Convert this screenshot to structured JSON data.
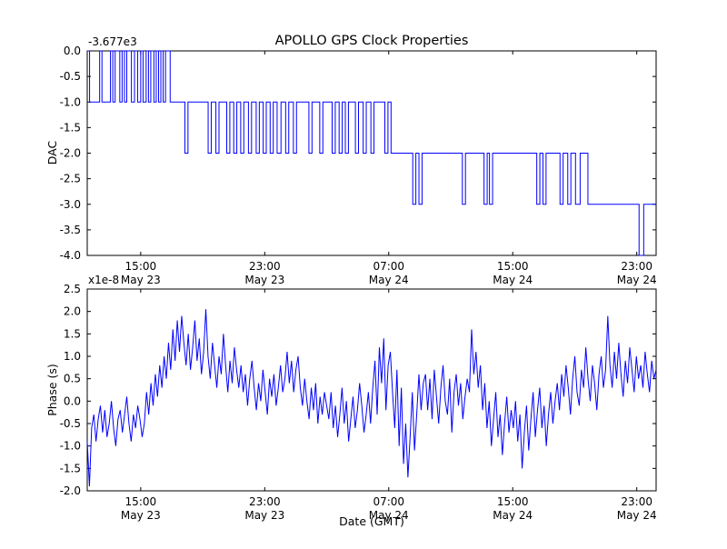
{
  "title": "APOLLO GPS Clock Properties",
  "colors": {
    "line": "#0000ff",
    "axis": "#000000",
    "background": "#ffffff"
  },
  "chart_data": [
    {
      "type": "line",
      "name": "dac",
      "title": "APOLLO GPS Clock Properties",
      "ylabel": "DAC",
      "xlabel": "",
      "offset_label": "-3.677e3",
      "ylim": [
        -4.0,
        0.0
      ],
      "xlim_hours": [
        0,
        36.7
      ],
      "grid": false,
      "legend": "none",
      "step": true,
      "yticks": [
        {
          "v": 0.0,
          "label": "0.0"
        },
        {
          "v": -0.5,
          "label": "-0.5"
        },
        {
          "v": -1.0,
          "label": "-1.0"
        },
        {
          "v": -1.5,
          "label": "-1.5"
        },
        {
          "v": -2.0,
          "label": "-2.0"
        },
        {
          "v": -2.5,
          "label": "-2.5"
        },
        {
          "v": -3.0,
          "label": "-3.0"
        },
        {
          "v": -3.5,
          "label": "-3.5"
        },
        {
          "v": -4.0,
          "label": "-4.0"
        }
      ],
      "xticks": [
        {
          "t": 3.45,
          "time": "15:00",
          "date": "May 23"
        },
        {
          "t": 11.45,
          "time": "23:00",
          "date": "May 23"
        },
        {
          "t": 19.45,
          "time": "07:00",
          "date": "May 24"
        },
        {
          "t": 27.45,
          "time": "15:00",
          "date": "May 24"
        },
        {
          "t": 35.45,
          "time": "23:00",
          "date": "May 24"
        }
      ],
      "points": [
        [
          0.0,
          0
        ],
        [
          0.15,
          -1
        ],
        [
          0.8,
          0
        ],
        [
          0.95,
          -1
        ],
        [
          1.5,
          0
        ],
        [
          1.65,
          -1
        ],
        [
          1.8,
          0
        ],
        [
          2.1,
          -1
        ],
        [
          2.25,
          0
        ],
        [
          2.4,
          -1
        ],
        [
          2.55,
          0
        ],
        [
          2.85,
          -1
        ],
        [
          3.05,
          0
        ],
        [
          3.25,
          -1
        ],
        [
          3.45,
          0
        ],
        [
          3.6,
          -1
        ],
        [
          3.8,
          0
        ],
        [
          3.95,
          -1
        ],
        [
          4.1,
          0
        ],
        [
          4.3,
          -1
        ],
        [
          4.45,
          0
        ],
        [
          4.6,
          -1
        ],
        [
          4.75,
          0
        ],
        [
          4.9,
          -1
        ],
        [
          5.05,
          0
        ],
        [
          5.35,
          -1
        ],
        [
          6.3,
          -2
        ],
        [
          6.5,
          -1
        ],
        [
          7.8,
          -2
        ],
        [
          8.0,
          -1
        ],
        [
          8.3,
          -2
        ],
        [
          8.5,
          -1
        ],
        [
          9.0,
          -2
        ],
        [
          9.2,
          -1
        ],
        [
          9.45,
          -2
        ],
        [
          9.65,
          -1
        ],
        [
          9.9,
          -2
        ],
        [
          10.1,
          -1
        ],
        [
          10.4,
          -2
        ],
        [
          10.6,
          -1
        ],
        [
          10.9,
          -2
        ],
        [
          11.1,
          -1
        ],
        [
          11.35,
          -2
        ],
        [
          11.55,
          -1
        ],
        [
          11.8,
          -2
        ],
        [
          12.0,
          -1
        ],
        [
          12.25,
          -2
        ],
        [
          12.5,
          -1
        ],
        [
          12.8,
          -2
        ],
        [
          13.0,
          -1
        ],
        [
          13.3,
          -2
        ],
        [
          13.5,
          -1
        ],
        [
          14.3,
          -2
        ],
        [
          14.5,
          -1
        ],
        [
          15.0,
          -2
        ],
        [
          15.2,
          -1
        ],
        [
          15.8,
          -2
        ],
        [
          16.0,
          -1
        ],
        [
          16.25,
          -2
        ],
        [
          16.45,
          -1
        ],
        [
          16.65,
          -2
        ],
        [
          16.85,
          -1
        ],
        [
          17.3,
          -2
        ],
        [
          17.5,
          -1
        ],
        [
          17.8,
          -2
        ],
        [
          18.0,
          -1
        ],
        [
          18.3,
          -2
        ],
        [
          18.5,
          -1
        ],
        [
          19.2,
          -2
        ],
        [
          19.4,
          -1
        ],
        [
          19.6,
          -2
        ],
        [
          21.0,
          -3
        ],
        [
          21.2,
          -2
        ],
        [
          21.4,
          -3
        ],
        [
          21.6,
          -2
        ],
        [
          24.2,
          -3
        ],
        [
          24.4,
          -2
        ],
        [
          25.6,
          -3
        ],
        [
          25.8,
          -2
        ],
        [
          25.95,
          -3
        ],
        [
          26.15,
          -2
        ],
        [
          29.0,
          -3
        ],
        [
          29.2,
          -2
        ],
        [
          29.4,
          -3
        ],
        [
          29.6,
          -2
        ],
        [
          30.5,
          -3
        ],
        [
          30.7,
          -2
        ],
        [
          31.0,
          -3
        ],
        [
          31.2,
          -2
        ],
        [
          31.5,
          -3
        ],
        [
          31.8,
          -2
        ],
        [
          32.3,
          -3
        ],
        [
          35.6,
          -4
        ],
        [
          35.9,
          -3
        ],
        [
          36.7,
          -3
        ]
      ]
    },
    {
      "type": "line",
      "name": "phase",
      "ylabel": "Phase (s)",
      "xlabel": "Date (GMT)",
      "offset_label": "x1e-8",
      "units_multiplier": "1e-8",
      "ylim": [
        -2.0,
        2.5
      ],
      "xlim_hours": [
        0,
        36.7
      ],
      "grid": false,
      "legend": "none",
      "step": false,
      "yticks": [
        {
          "v": 2.5,
          "label": "2.5"
        },
        {
          "v": 2.0,
          "label": "2.0"
        },
        {
          "v": 1.5,
          "label": "1.5"
        },
        {
          "v": 1.0,
          "label": "1.0"
        },
        {
          "v": 0.5,
          "label": "0.5"
        },
        {
          "v": 0.0,
          "label": "0.0"
        },
        {
          "v": -0.5,
          "label": "-0.5"
        },
        {
          "v": -1.0,
          "label": "-1.0"
        },
        {
          "v": -1.5,
          "label": "-1.5"
        },
        {
          "v": -2.0,
          "label": "-2.0"
        }
      ],
      "xticks": [
        {
          "t": 3.45,
          "time": "15:00",
          "date": "May 23"
        },
        {
          "t": 11.45,
          "time": "23:00",
          "date": "May 23"
        },
        {
          "t": 19.45,
          "time": "07:00",
          "date": "May 24"
        },
        {
          "t": 27.45,
          "time": "15:00",
          "date": "May 24"
        },
        {
          "t": 35.45,
          "time": "23:00",
          "date": "May 24"
        }
      ],
      "values": [
        -0.9,
        -1.9,
        -0.6,
        -0.3,
        -0.9,
        -0.4,
        -0.1,
        -0.7,
        -0.2,
        -0.8,
        -0.5,
        0.0,
        -0.6,
        -1.0,
        -0.4,
        -0.2,
        -0.7,
        -0.3,
        0.1,
        -0.5,
        -0.9,
        -0.3,
        -0.6,
        -0.1,
        -0.4,
        -0.8,
        -0.5,
        0.2,
        -0.3,
        0.4,
        -0.1,
        0.6,
        0.1,
        0.8,
        0.3,
        1.0,
        0.5,
        1.3,
        0.7,
        1.6,
        0.9,
        1.8,
        1.1,
        1.9,
        1.3,
        0.8,
        1.5,
        0.7,
        1.2,
        1.8,
        0.9,
        1.4,
        0.6,
        1.1,
        2.05,
        1.0,
        0.5,
        1.3,
        0.8,
        0.3,
        1.0,
        0.6,
        1.5,
        0.8,
        0.2,
        0.9,
        0.4,
        1.2,
        0.7,
        0.3,
        0.8,
        0.2,
        0.6,
        -0.1,
        0.5,
        0.9,
        0.3,
        -0.2,
        0.4,
        0.0,
        0.7,
        0.2,
        -0.3,
        0.5,
        0.1,
        0.6,
        -0.1,
        0.3,
        0.8,
        0.2,
        0.5,
        1.1,
        0.4,
        0.9,
        0.2,
        0.7,
        1.0,
        0.3,
        -0.1,
        0.5,
        0.0,
        -0.4,
        0.3,
        -0.2,
        0.4,
        -0.5,
        0.1,
        -0.3,
        0.2,
        -0.1,
        -0.4,
        0.2,
        -0.6,
        -0.1,
        -0.8,
        -0.3,
        0.3,
        -0.5,
        0.0,
        -0.9,
        -0.4,
        0.1,
        -0.6,
        -0.2,
        0.4,
        -0.1,
        -0.7,
        -0.3,
        0.2,
        -0.5,
        0.3,
        0.9,
        -0.3,
        1.2,
        0.4,
        1.4,
        -0.2,
        0.8,
        1.1,
        0.2,
        -0.6,
        0.7,
        -1.0,
        0.3,
        -1.4,
        -0.5,
        -1.7,
        -0.8,
        0.2,
        -1.1,
        -0.3,
        0.6,
        -0.2,
        0.4,
        0.6,
        -0.2,
        0.5,
        -0.4,
        0.7,
        0.1,
        -0.5,
        0.3,
        0.8,
        0.0,
        -0.3,
        0.5,
        -0.7,
        0.2,
        0.6,
        -0.1,
        0.4,
        -0.4,
        0.1,
        0.5,
        0.2,
        1.6,
        0.6,
        1.1,
        0.3,
        0.8,
        -0.2,
        0.4,
        -0.6,
        0.0,
        -1.0,
        -0.4,
        0.2,
        -0.8,
        -0.3,
        -1.2,
        -0.5,
        0.1,
        -0.7,
        -0.2,
        -0.6,
        0.0,
        -0.9,
        -0.3,
        -1.5,
        -0.7,
        -0.1,
        -1.1,
        -0.4,
        0.2,
        -0.8,
        -0.2,
        0.3,
        -0.6,
        -0.1,
        -1.0,
        -0.3,
        0.2,
        -0.5,
        0.0,
        0.4,
        -0.2,
        0.6,
        0.1,
        0.8,
        0.3,
        -0.3,
        0.5,
        1.0,
        0.2,
        -0.1,
        0.7,
        0.3,
        1.2,
        0.5,
        0.0,
        0.8,
        0.4,
        -0.2,
        0.6,
        1.0,
        0.3,
        0.7,
        1.9,
        0.8,
        0.3,
        1.1,
        0.5,
        1.3,
        0.6,
        0.1,
        0.9,
        0.4,
        1.2,
        0.7,
        0.2,
        1.0,
        0.5,
        0.8,
        0.3,
        1.1,
        0.6,
        0.2,
        0.9,
        0.5,
        0.7
      ]
    }
  ]
}
